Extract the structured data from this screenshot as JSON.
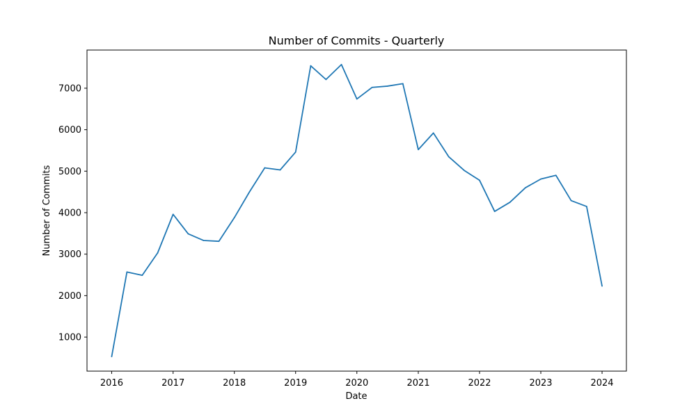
{
  "chart_data": {
    "type": "line",
    "title": "Number of Commits - Quarterly",
    "xlabel": "Date",
    "ylabel": "Number of Commits",
    "x": [
      "2016-01-01",
      "2016-04-01",
      "2016-07-01",
      "2016-10-01",
      "2017-01-01",
      "2017-04-01",
      "2017-07-01",
      "2017-10-01",
      "2018-01-01",
      "2018-04-01",
      "2018-07-01",
      "2018-10-01",
      "2019-01-01",
      "2019-04-01",
      "2019-07-01",
      "2019-10-01",
      "2020-01-01",
      "2020-04-01",
      "2020-07-01",
      "2020-10-01",
      "2021-01-01",
      "2021-04-01",
      "2021-07-01",
      "2021-10-01",
      "2022-01-01",
      "2022-04-01",
      "2022-07-01",
      "2022-10-01",
      "2023-01-01",
      "2023-04-01",
      "2023-07-01",
      "2023-10-01",
      "2024-01-01"
    ],
    "series": [
      {
        "values": [
          530,
          2570,
          2490,
          3030,
          3960,
          3490,
          3330,
          3310,
          3880,
          4500,
          5080,
          5030,
          5460,
          7540,
          7210,
          7570,
          6740,
          7020,
          7050,
          7110,
          5520,
          5920,
          5350,
          5020,
          4780,
          4030,
          4250,
          4600,
          4810,
          4900,
          4290,
          4150,
          2230
        ],
        "color": "#1f77b4"
      }
    ],
    "xticks": [
      "2016",
      "2017",
      "2018",
      "2019",
      "2020",
      "2021",
      "2022",
      "2023",
      "2024"
    ],
    "yticks": [
      1000,
      2000,
      3000,
      4000,
      5000,
      6000,
      7000
    ],
    "xlim": [
      "2015-08-07",
      "2024-05-25"
    ],
    "ylim": [
      180,
      7920
    ],
    "grid": false,
    "legend": "none"
  }
}
